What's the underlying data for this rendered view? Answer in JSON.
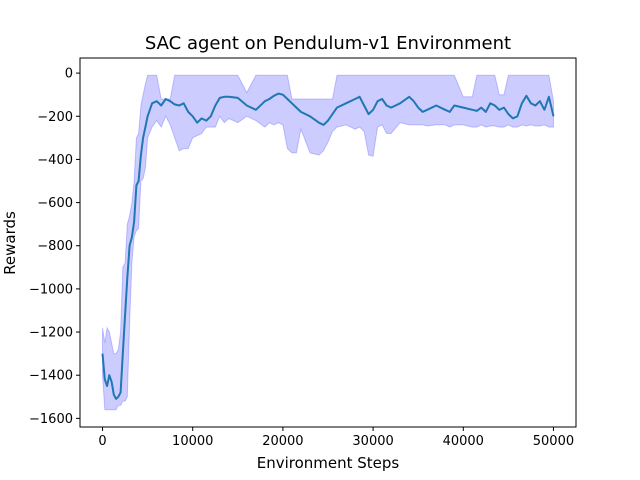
{
  "chart_data": {
    "type": "line",
    "title": "SAC agent on Pendulum-v1 Environment",
    "xlabel": "Environment Steps",
    "ylabel": "Rewards",
    "xlim": [
      -2500,
      52500
    ],
    "ylim": [
      -1640,
      70
    ],
    "xticks": [
      0,
      10000,
      20000,
      30000,
      40000,
      50000
    ],
    "xtick_labels": [
      "0",
      "10000",
      "20000",
      "30000",
      "40000",
      "50000"
    ],
    "yticks": [
      0,
      -200,
      -400,
      -600,
      -800,
      -1000,
      -1200,
      -1400,
      -1600
    ],
    "ytick_labels": [
      "0",
      "−200",
      "−400",
      "−600",
      "−800",
      "−1000",
      "−1200",
      "−1400",
      "−1600"
    ],
    "grid": false,
    "legend": "none",
    "colors": {
      "line": "#1f77b4",
      "band": "#0000ff",
      "band_alpha": 0.2
    },
    "series": [
      {
        "x": [
          0,
          250,
          500,
          750,
          1000,
          1250,
          1500,
          1750,
          2000,
          2250,
          2500,
          2750,
          3000,
          3250,
          3500,
          3750,
          4000,
          4250,
          4500,
          4750,
          5000,
          5500,
          6000,
          6500,
          7000,
          7500,
          8000,
          8500,
          9000,
          9500,
          10000,
          10500,
          11000,
          11500,
          12000,
          12500,
          13000,
          13500,
          14000,
          15000,
          16000,
          17000,
          18000,
          18500,
          19000,
          19500,
          20000,
          20500,
          21000,
          21500,
          22000,
          23000,
          24000,
          24500,
          25000,
          25500,
          26000,
          27000,
          28000,
          28500,
          29000,
          29500,
          30000,
          30500,
          31000,
          31500,
          32000,
          33000,
          34000,
          34500,
          35000,
          35500,
          36000,
          37000,
          38000,
          38500,
          39000,
          40000,
          41000,
          41500,
          42000,
          42500,
          43000,
          43500,
          44000,
          44500,
          45000,
          45500,
          46000,
          46500,
          47000,
          47500,
          48000,
          48500,
          49000,
          49500,
          50000
        ],
        "y": [
          -1300,
          -1420,
          -1450,
          -1400,
          -1430,
          -1490,
          -1510,
          -1500,
          -1480,
          -1300,
          -1120,
          -950,
          -800,
          -760,
          -690,
          -520,
          -500,
          -380,
          -300,
          -250,
          -200,
          -140,
          -130,
          -150,
          -120,
          -130,
          -145,
          -150,
          -140,
          -180,
          -200,
          -230,
          -210,
          -220,
          -200,
          -150,
          -115,
          -110,
          -110,
          -115,
          -150,
          -170,
          -130,
          -120,
          -105,
          -95,
          -100,
          -120,
          -140,
          -160,
          -180,
          -200,
          -230,
          -240,
          -220,
          -190,
          -160,
          -140,
          -120,
          -110,
          -150,
          -190,
          -170,
          -130,
          -120,
          -150,
          -160,
          -140,
          -110,
          -130,
          -160,
          -180,
          -170,
          -150,
          -170,
          -180,
          -150,
          -160,
          -170,
          -175,
          -160,
          -180,
          -140,
          -150,
          -170,
          -160,
          -190,
          -210,
          -200,
          -140,
          -105,
          -140,
          -150,
          -130,
          -170,
          -110,
          -200
        ],
        "upper": [
          -1180,
          -1250,
          -1180,
          -1200,
          -1250,
          -1300,
          -1300,
          -1280,
          -1200,
          -900,
          -880,
          -700,
          -660,
          -600,
          -500,
          -300,
          -280,
          -150,
          -100,
          -50,
          -10,
          -10,
          -10,
          -120,
          -120,
          -120,
          -10,
          -10,
          -10,
          -10,
          -10,
          -10,
          -10,
          -10,
          -10,
          -10,
          -10,
          -10,
          -10,
          -10,
          -90,
          -10,
          -10,
          -10,
          -10,
          -10,
          -10,
          -10,
          -120,
          -120,
          -120,
          -120,
          -120,
          -120,
          -120,
          -120,
          -10,
          -10,
          -10,
          -10,
          -10,
          -10,
          -10,
          -10,
          -10,
          -10,
          -10,
          -10,
          -10,
          -10,
          -10,
          -10,
          -10,
          -10,
          -10,
          -10,
          -10,
          -110,
          -110,
          -10,
          -10,
          -10,
          -10,
          -10,
          -100,
          -100,
          -10,
          -10,
          -10,
          -10,
          -10,
          -10,
          -10,
          -10,
          -10,
          -10,
          -130
        ],
        "lower": [
          -1400,
          -1560,
          -1560,
          -1560,
          -1560,
          -1560,
          -1560,
          -1540,
          -1540,
          -1520,
          -1520,
          -1500,
          -1160,
          -880,
          -760,
          -730,
          -720,
          -500,
          -490,
          -440,
          -300,
          -250,
          -220,
          -250,
          -200,
          -240,
          -300,
          -360,
          -350,
          -350,
          -300,
          -290,
          -280,
          -250,
          -250,
          -250,
          -200,
          -230,
          -210,
          -230,
          -200,
          -220,
          -250,
          -230,
          -240,
          -230,
          -240,
          -350,
          -370,
          -370,
          -260,
          -370,
          -380,
          -360,
          -320,
          -270,
          -250,
          -240,
          -260,
          -250,
          -270,
          -380,
          -385,
          -250,
          -240,
          -280,
          -280,
          -230,
          -240,
          -240,
          -240,
          -240,
          -245,
          -240,
          -240,
          -250,
          -240,
          -240,
          -250,
          -250,
          -240,
          -250,
          -245,
          -245,
          -250,
          -250,
          -240,
          -250,
          -250,
          -240,
          -245,
          -240,
          -245,
          -245,
          -240,
          -250,
          -250
        ]
      }
    ]
  }
}
